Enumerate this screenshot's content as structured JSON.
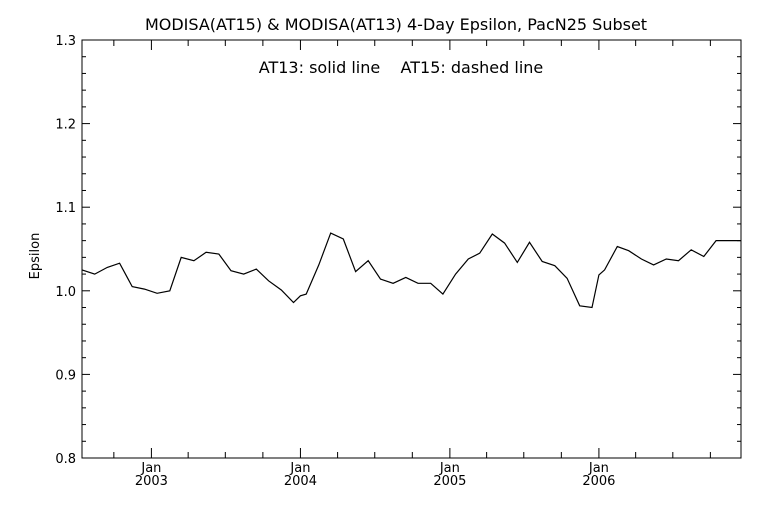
{
  "chart_data": {
    "type": "line",
    "title": "MODISA(AT15) & MODISA(AT13) 4-Day Epsilon, PacN25 Subset",
    "annotation": "AT13: solid line    AT15: dashed line",
    "xlabel": "",
    "ylabel": "Epsilon",
    "ylim": [
      0.8,
      1.3
    ],
    "yticks": [
      "0.8",
      "0.9",
      "1.0",
      "1.1",
      "1.2",
      "1.3"
    ],
    "xlim": [
      "2002-07-15",
      "2006-12-15"
    ],
    "xticks": [
      {
        "date": "2003-01-01",
        "month": "Jan",
        "year": "2003"
      },
      {
        "date": "2004-01-01",
        "month": "Jan",
        "year": "2004"
      },
      {
        "date": "2005-01-01",
        "month": "Jan",
        "year": "2005"
      },
      {
        "date": "2006-01-01",
        "month": "Jan",
        "year": "2006"
      }
    ],
    "grid": false,
    "series": [
      {
        "name": "AT13",
        "style": "solid",
        "color": "#000000",
        "x": [
          "2002-07-15",
          "2002-08-15",
          "2002-09-15",
          "2002-10-15",
          "2002-11-15",
          "2002-12-15",
          "2003-01-15",
          "2003-02-15",
          "2003-03-15",
          "2003-04-15",
          "2003-05-15",
          "2003-06-15",
          "2003-07-15",
          "2003-08-15",
          "2003-09-15",
          "2003-10-15",
          "2003-11-15",
          "2003-12-15",
          "2004-01-01",
          "2004-01-15",
          "2004-02-15",
          "2004-03-15",
          "2004-04-15",
          "2004-05-15",
          "2004-06-15",
          "2004-07-15",
          "2004-08-15",
          "2004-09-15",
          "2004-10-15",
          "2004-11-15",
          "2004-12-15",
          "2005-01-15",
          "2005-02-15",
          "2005-03-15",
          "2005-04-15",
          "2005-05-15",
          "2005-06-15",
          "2005-07-15",
          "2005-08-15",
          "2005-09-15",
          "2005-10-15",
          "2005-11-15",
          "2005-12-15",
          "2006-01-01",
          "2006-01-15",
          "2006-02-15",
          "2006-03-15",
          "2006-04-15",
          "2006-05-15",
          "2006-06-15",
          "2006-07-15",
          "2006-08-15",
          "2006-09-15",
          "2006-10-15",
          "2006-11-15",
          "2006-12-15"
        ],
        "values": [
          1.025,
          1.02,
          1.028,
          1.033,
          1.005,
          1.002,
          0.997,
          1.0,
          1.04,
          1.036,
          1.046,
          1.044,
          1.024,
          1.02,
          1.026,
          1.012,
          1.001,
          0.986,
          0.994,
          0.996,
          1.031,
          1.069,
          1.062,
          1.023,
          1.036,
          1.014,
          1.009,
          1.016,
          1.009,
          1.009,
          0.996,
          1.02,
          1.038,
          1.045,
          1.068,
          1.057,
          1.034,
          1.058,
          1.035,
          1.03,
          1.015,
          0.982,
          0.98,
          1.019,
          1.025,
          1.053,
          1.048,
          1.038,
          1.031,
          1.038,
          1.036,
          1.049,
          1.041,
          1.06,
          1.06,
          1.06
        ]
      }
    ]
  }
}
